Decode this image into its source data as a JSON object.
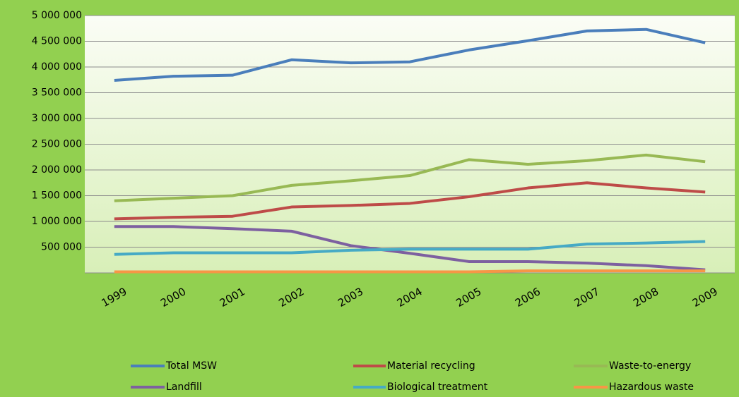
{
  "chart_data": {
    "type": "line",
    "categories": [
      "1999",
      "2000",
      "2001",
      "2002",
      "2003",
      "2004",
      "2005",
      "2006",
      "2007",
      "2008",
      "2009"
    ],
    "series": [
      {
        "name": "Total MSW",
        "color": "#4a7ebb",
        "values": [
          3740000,
          3820000,
          3840000,
          4140000,
          4080000,
          4100000,
          4330000,
          4510000,
          4700000,
          4730000,
          4470000
        ]
      },
      {
        "name": "Material recycling",
        "color": "#be4b48",
        "values": [
          1050000,
          1080000,
          1100000,
          1280000,
          1310000,
          1350000,
          1480000,
          1650000,
          1750000,
          1650000,
          1570000
        ]
      },
      {
        "name": "Waste-to-energy",
        "color": "#98b954",
        "values": [
          1400000,
          1450000,
          1500000,
          1700000,
          1790000,
          1890000,
          2200000,
          2110000,
          2180000,
          2290000,
          2160000
        ]
      },
      {
        "name": "Landfill",
        "color": "#7d60a0",
        "values": [
          900000,
          900000,
          860000,
          810000,
          530000,
          380000,
          220000,
          220000,
          190000,
          140000,
          60000
        ]
      },
      {
        "name": "Biological treatment",
        "color": "#46aac5",
        "values": [
          360000,
          390000,
          390000,
          390000,
          440000,
          460000,
          460000,
          460000,
          560000,
          580000,
          610000
        ]
      },
      {
        "name": "Hazardous waste",
        "color": "#f79646",
        "values": [
          20000,
          20000,
          20000,
          20000,
          20000,
          20000,
          20000,
          40000,
          40000,
          40000,
          40000
        ]
      }
    ],
    "ylim": [
      0,
      5000000
    ],
    "yticks": [
      {
        "value": 500000,
        "label": "500 000"
      },
      {
        "value": 1000000,
        "label": "1 000 000"
      },
      {
        "value": 1500000,
        "label": "1 500 000"
      },
      {
        "value": 2000000,
        "label": "2 000 000"
      },
      {
        "value": 2500000,
        "label": "2 500 000"
      },
      {
        "value": 3000000,
        "label": "3 000 000"
      },
      {
        "value": 3500000,
        "label": "3 500 000"
      },
      {
        "value": 4000000,
        "label": "4 000 000"
      },
      {
        "value": 4500000,
        "label": "4 500 000"
      },
      {
        "value": 5000000,
        "label": "5 000 000"
      }
    ],
    "grid": true
  }
}
